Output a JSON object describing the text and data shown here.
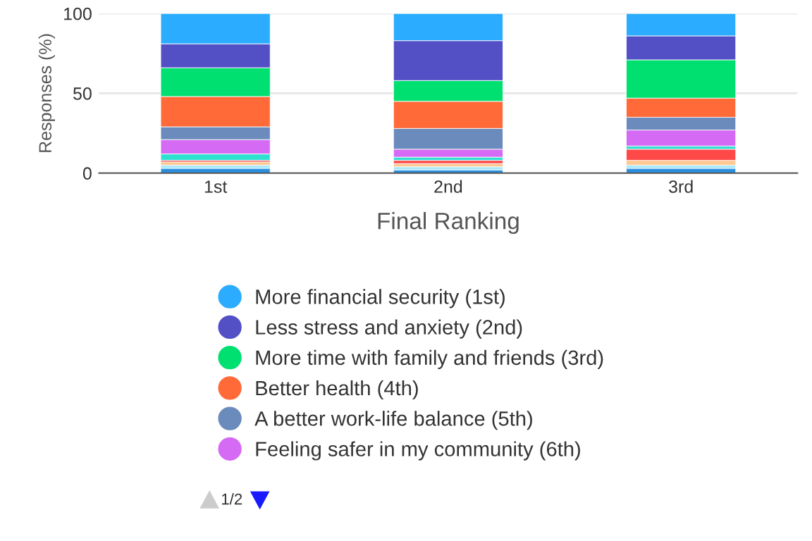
{
  "chart_data": {
    "type": "bar",
    "stacked": true,
    "categories": [
      "1st",
      "2nd",
      "3rd"
    ],
    "xlabel": "Final Ranking",
    "ylabel": "Responses (%)",
    "ylim": [
      0,
      100
    ],
    "yticks": [
      0,
      50,
      100
    ],
    "grid": "y",
    "legend": "bottom",
    "annotations": [
      "1/2"
    ],
    "series": [
      {
        "color": "#2a8fe0",
        "values": [
          3,
          2,
          3
        ]
      },
      {
        "color": "#a8e8f8",
        "values": [
          2,
          2,
          2
        ]
      },
      {
        "color": "#ffc890",
        "values": [
          2,
          2,
          3
        ]
      },
      {
        "color": "#ff4848",
        "values": [
          1,
          2,
          7
        ]
      },
      {
        "color": "#2fe0d0",
        "values": [
          4,
          2,
          2
        ]
      },
      {
        "name": "Feeling safer in my community (6th)",
        "color": "#d56af5",
        "values": [
          9,
          5,
          10
        ]
      },
      {
        "name": "A better work-life balance (5th)",
        "color": "#6a8bbb",
        "values": [
          8,
          13,
          8
        ]
      },
      {
        "name": "Better health (4th)",
        "color": "#ff6a38",
        "values": [
          19,
          17,
          12
        ]
      },
      {
        "name": "More time with family and friends (3rd)",
        "color": "#00e070",
        "values": [
          18,
          13,
          24
        ]
      },
      {
        "name": "Less stress and anxiety (2nd)",
        "color": "#5350c6",
        "values": [
          15,
          25,
          15
        ]
      },
      {
        "name": "More financial security (1st)",
        "color": "#2bacff",
        "values": [
          19,
          17,
          14
        ]
      }
    ]
  }
}
